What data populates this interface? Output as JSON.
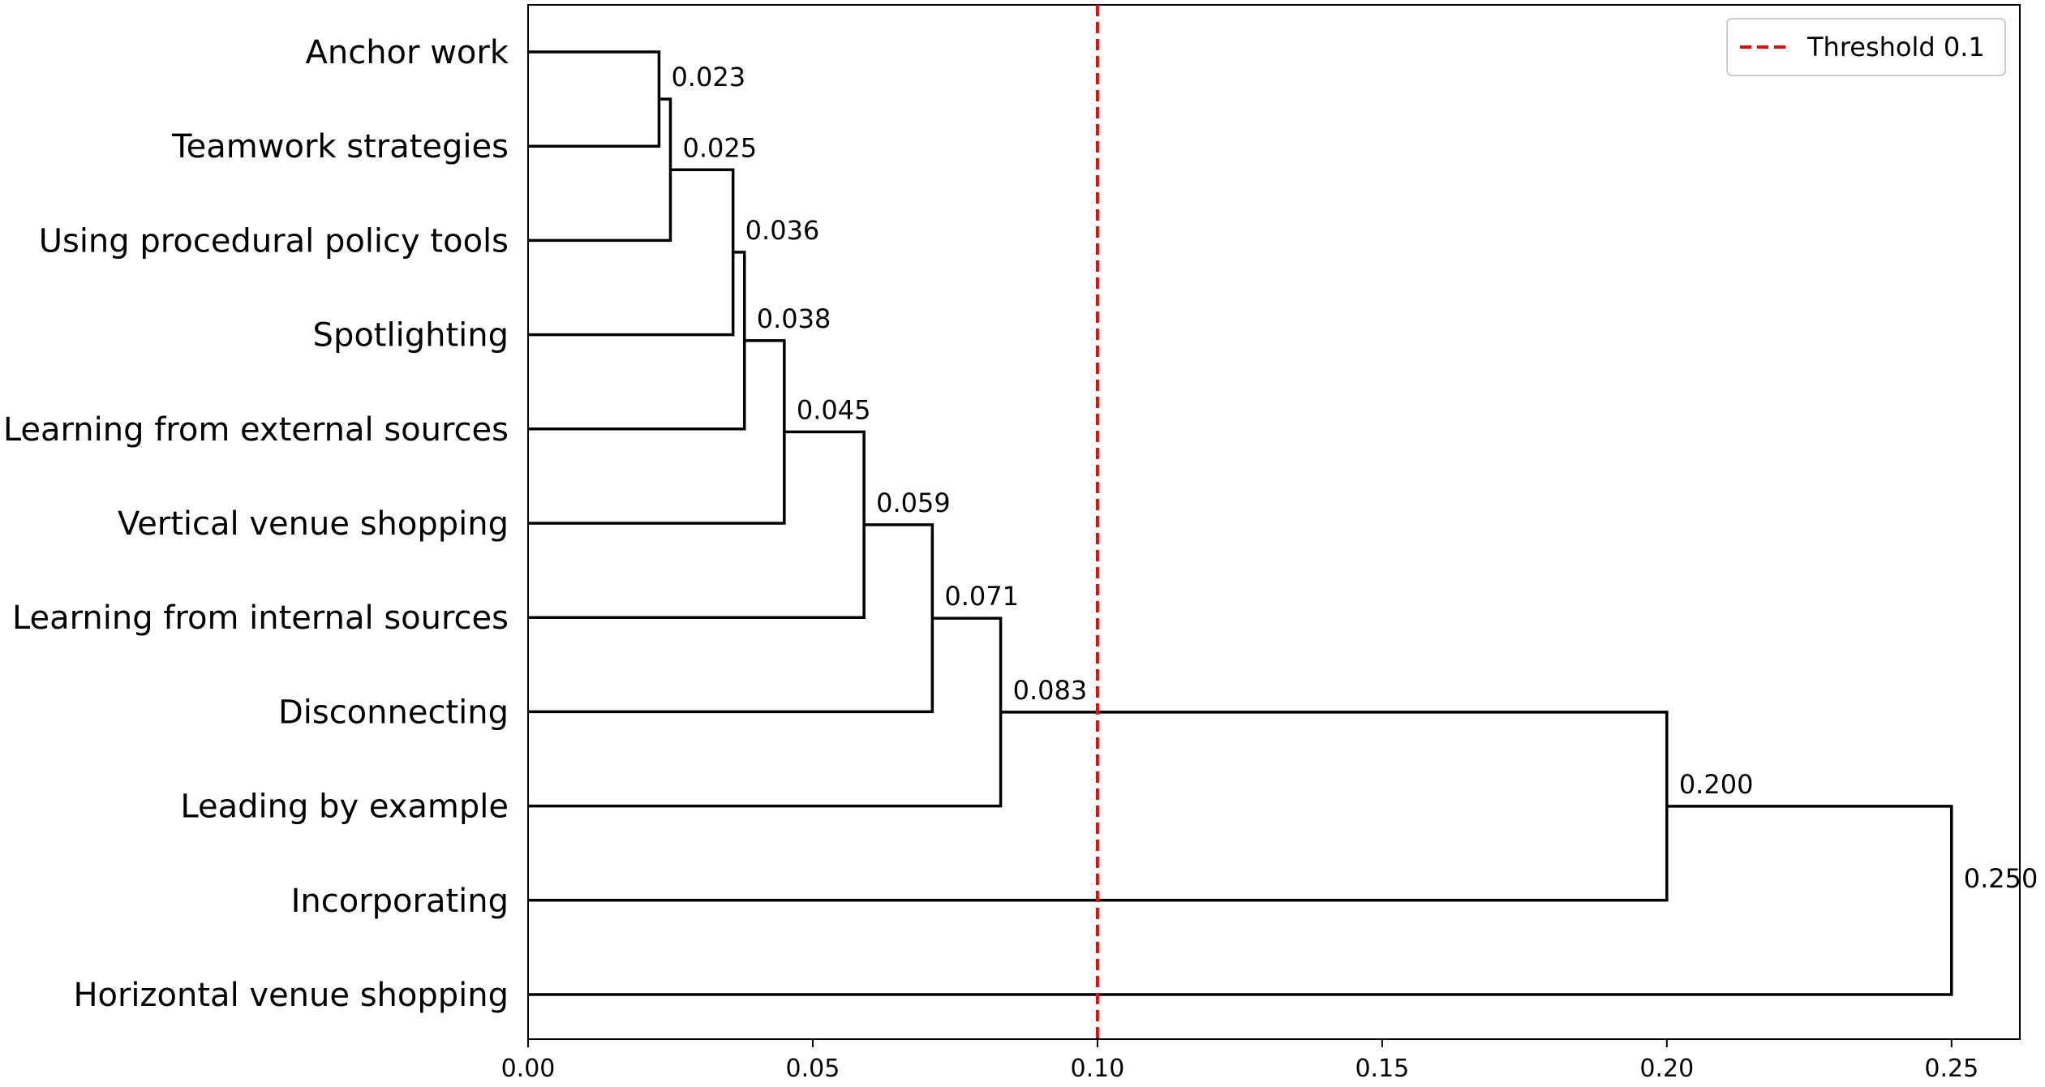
{
  "chart_data": {
    "type": "dendrogram",
    "orientation": "horizontal",
    "leaves": [
      "Anchor work",
      "Teamwork strategies",
      "Using procedural policy tools",
      "Spotlighting",
      "Learning from external sources",
      "Vertical venue shopping",
      "Learning from internal sources",
      "Disconnecting",
      "Leading by example",
      "Incorporating",
      "Horizontal venue shopping"
    ],
    "merges": [
      {
        "label": "0.023",
        "height": 0.023,
        "left": "leaf:0",
        "right": "leaf:1"
      },
      {
        "label": "0.025",
        "height": 0.025,
        "left": "merge:0",
        "right": "leaf:2"
      },
      {
        "label": "0.036",
        "height": 0.036,
        "left": "merge:1",
        "right": "leaf:3"
      },
      {
        "label": "0.038",
        "height": 0.038,
        "left": "merge:2",
        "right": "leaf:4"
      },
      {
        "label": "0.045",
        "height": 0.045,
        "left": "merge:3",
        "right": "leaf:5"
      },
      {
        "label": "0.059",
        "height": 0.059,
        "left": "merge:4",
        "right": "leaf:6"
      },
      {
        "label": "0.071",
        "height": 0.071,
        "left": "merge:5",
        "right": "leaf:7"
      },
      {
        "label": "0.083",
        "height": 0.083,
        "left": "merge:6",
        "right": "leaf:8"
      },
      {
        "label": "0.200",
        "height": 0.2,
        "left": "merge:7",
        "right": "leaf:9"
      },
      {
        "label": "0.250",
        "height": 0.25,
        "left": "merge:8",
        "right": "leaf:10"
      }
    ],
    "threshold": {
      "value": 0.1,
      "label": "Threshold 0.1",
      "color": "#ff0000",
      "style": "dashed"
    },
    "xlim": [
      0.0,
      0.262
    ],
    "xticks": [
      0.0,
      0.05,
      0.1,
      0.15,
      0.2,
      0.25
    ],
    "xtick_labels": [
      "0.00",
      "0.05",
      "0.10",
      "0.15",
      "0.20",
      "0.25"
    ],
    "grid": false,
    "legend": {
      "placement": "top-right",
      "entries": [
        "Threshold 0.1"
      ]
    },
    "line_color": "#000000"
  }
}
